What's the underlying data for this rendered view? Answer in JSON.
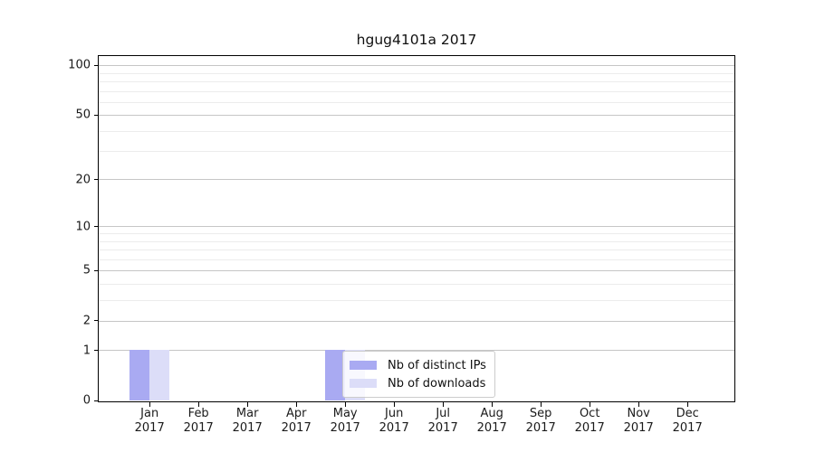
{
  "chart_data": {
    "type": "bar",
    "title": "hgug4101a 2017",
    "x_axis": {
      "months": [
        "Jan",
        "Feb",
        "Mar",
        "Apr",
        "May",
        "Jun",
        "Jul",
        "Aug",
        "Sep",
        "Oct",
        "Nov",
        "Dec"
      ],
      "year": "2017"
    },
    "y_axis": {
      "scale": "log10(1+x)",
      "tick_values": [
        0,
        1,
        2,
        5,
        10,
        20,
        50,
        100
      ],
      "minor_gridline_values": [
        3,
        4,
        6,
        7,
        8,
        9,
        30,
        40,
        60,
        70,
        80,
        90
      ],
      "range_max": 115
    },
    "series": [
      {
        "name": "Nb of distinct IPs",
        "color": "#a9aaf2",
        "values": [
          1,
          0,
          0,
          0,
          1,
          0,
          0,
          0,
          0,
          0,
          0,
          0
        ]
      },
      {
        "name": "Nb of downloads",
        "color": "#dcddf8",
        "values": [
          1,
          0,
          0,
          0,
          1,
          0,
          0,
          0,
          0,
          0,
          0,
          0
        ]
      }
    ],
    "legend": {
      "entries": [
        "Nb of distinct IPs",
        "Nb of downloads"
      ],
      "position": "inside-bottom-center"
    },
    "grid": true
  },
  "style": {
    "major_grid_color": "#c6c6c6",
    "minor_grid_color": "#ececec",
    "spine_color": "#000000",
    "text_color": "#1a1a1a",
    "legend_background": "rgba(255,255,255,0.8)",
    "legend_border": "#cccccc"
  }
}
